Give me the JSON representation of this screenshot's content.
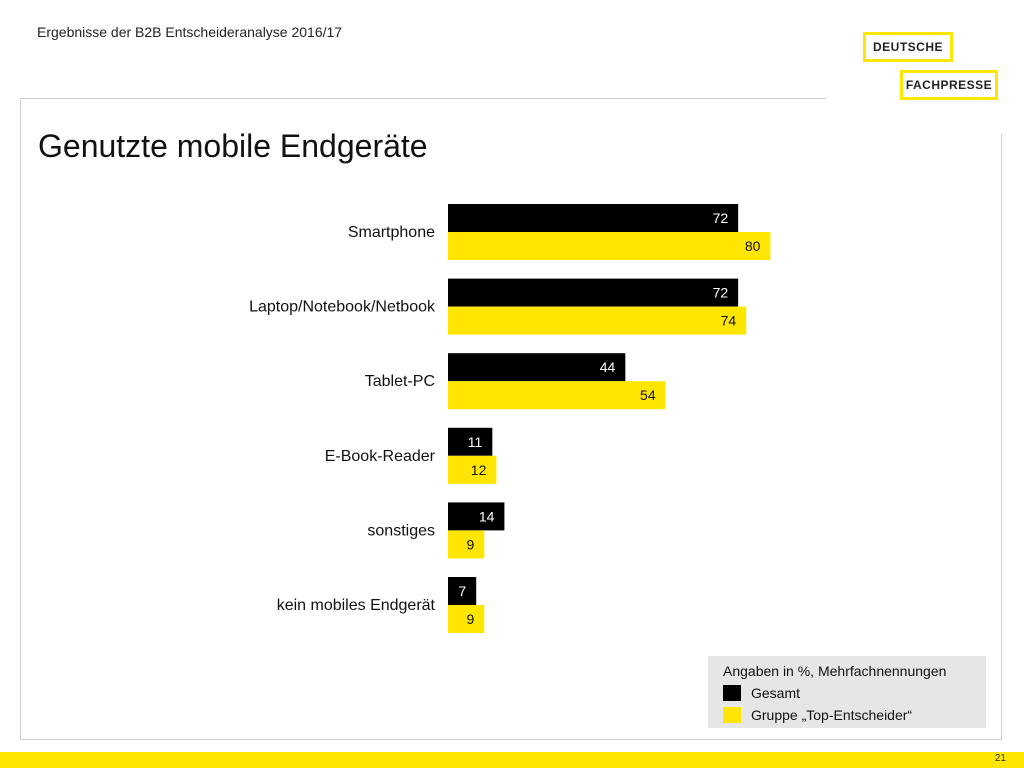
{
  "header": {
    "text": "Ergebnisse der B2B Entscheideranalyse 2016/17"
  },
  "logo": {
    "line1": "DEUTSCHE",
    "line2": "FACHPRESSE"
  },
  "title": "Genutzte mobile Endgeräte",
  "colors": {
    "gesamt": "#000000",
    "top": "#ffe600"
  },
  "chart_data": {
    "type": "bar",
    "orientation": "horizontal",
    "categories": [
      "Smartphone",
      "Laptop/Notebook/Netbook",
      "Tablet-PC",
      "E-Book-Reader",
      "sonstiges",
      "kein mobiles Endgerät"
    ],
    "series": [
      {
        "name": "Gesamt",
        "values": [
          72,
          72,
          44,
          11,
          14,
          7
        ]
      },
      {
        "name": "Gruppe „Top-Entscheider“",
        "values": [
          80,
          74,
          54,
          12,
          9,
          9
        ]
      }
    ],
    "xlim": [
      0,
      100
    ],
    "grid": false,
    "legend": "bottom-right"
  },
  "legend": {
    "note": "Angaben in %, Mehrfachnennungen",
    "gesamt": "Gesamt",
    "top": "Gruppe „Top-Entscheider“"
  },
  "footer": {
    "page": "21"
  }
}
